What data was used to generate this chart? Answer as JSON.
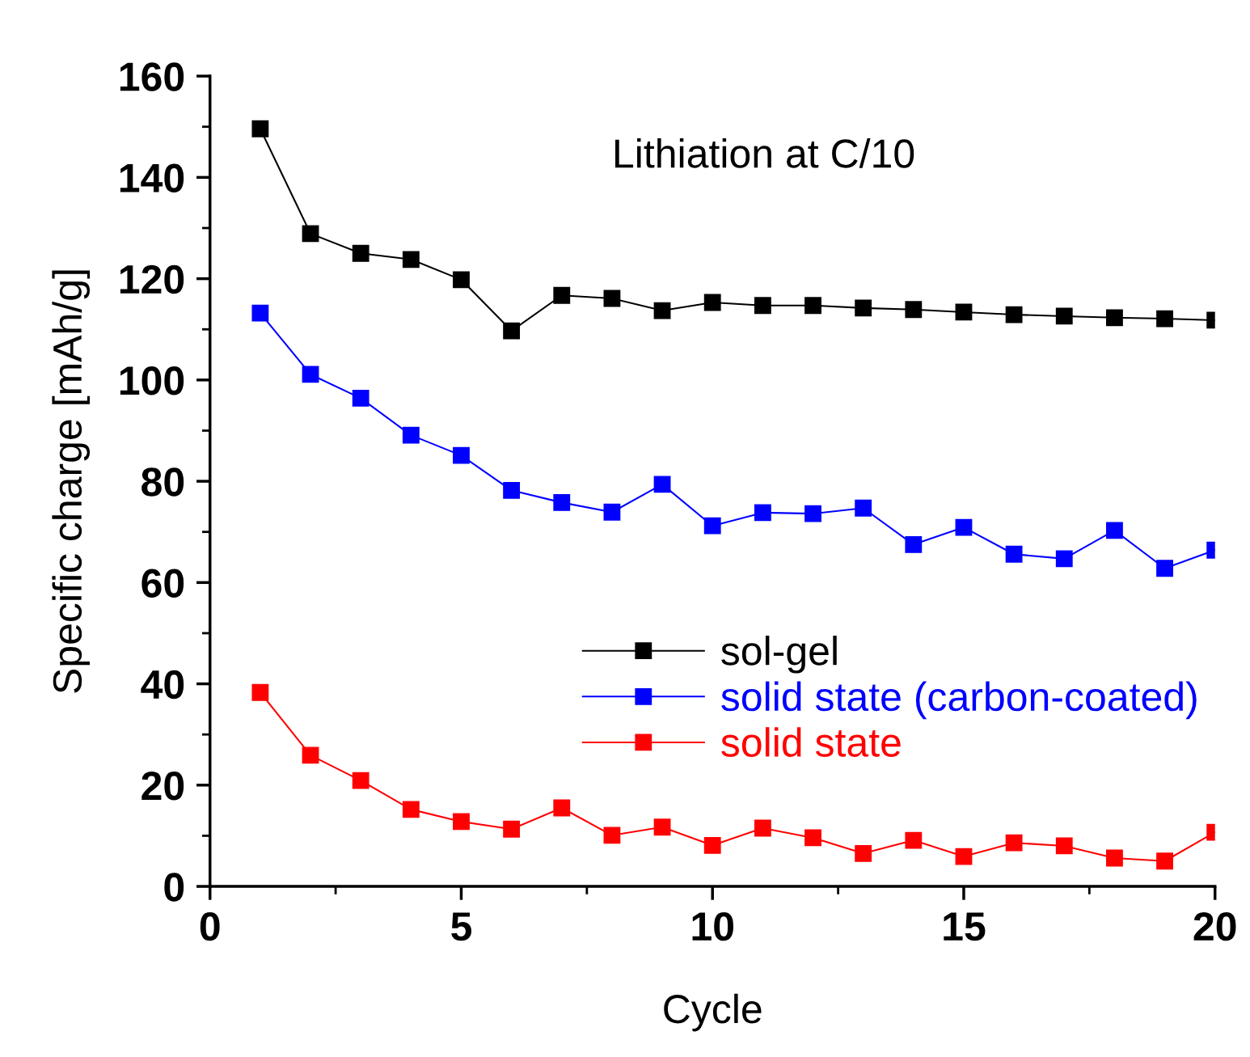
{
  "chart_data": {
    "type": "line",
    "xlabel": "Cycle",
    "ylabel": "Specific charge [mAh/g]",
    "annotations": [
      "Lithiation at C/10"
    ],
    "x": [
      1,
      2,
      3,
      4,
      5,
      6,
      7,
      8,
      9,
      10,
      11,
      12,
      13,
      14,
      15,
      16,
      17,
      18,
      19,
      20
    ],
    "series": [
      {
        "name": "sol-gel",
        "color": "#000000",
        "values": [
          149.6,
          128.9,
          125.0,
          123.8,
          119.8,
          109.7,
          116.7,
          116.1,
          113.7,
          115.3,
          114.7,
          114.7,
          114.2,
          113.9,
          113.4,
          112.9,
          112.6,
          112.3,
          112.1,
          111.8
        ]
      },
      {
        "name": "solid state (carbon-coated)",
        "color": "#0000ff",
        "values": [
          113.2,
          101.1,
          96.4,
          89.1,
          85.1,
          78.2,
          75.8,
          73.9,
          79.4,
          71.2,
          73.8,
          73.6,
          74.7,
          67.5,
          70.9,
          65.6,
          64.7,
          70.3,
          62.8,
          66.4
        ]
      },
      {
        "name": "solid state",
        "color": "#ff0000",
        "values": [
          38.3,
          25.9,
          20.9,
          15.2,
          12.8,
          11.3,
          15.5,
          10.1,
          11.7,
          8.1,
          11.5,
          9.6,
          6.5,
          9.1,
          5.9,
          8.6,
          8.0,
          5.6,
          5.0,
          10.7
        ]
      }
    ],
    "xlim": [
      0,
      20
    ],
    "xticks": [
      0,
      5,
      10,
      15,
      20
    ],
    "ylim": [
      0,
      160
    ],
    "yticks": [
      0,
      20,
      40,
      60,
      80,
      100,
      120,
      140,
      160
    ],
    "marker": "square",
    "line_style": "solid",
    "grid": false,
    "legend": "lower right"
  }
}
